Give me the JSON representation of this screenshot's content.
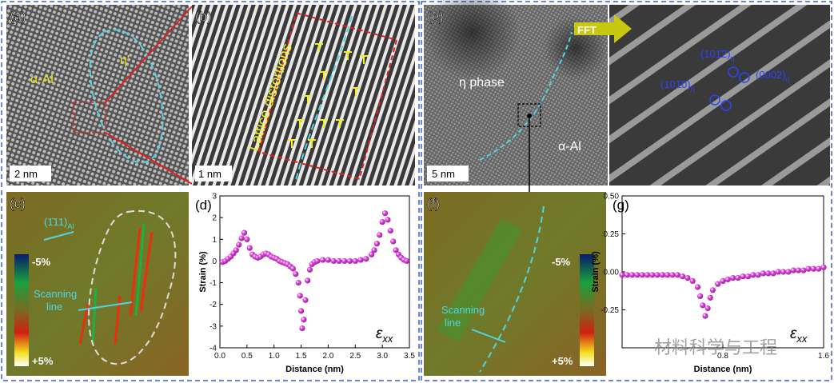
{
  "figure": {
    "a": {
      "label": "(a)",
      "matrix": "α-Al",
      "precipitate": "η'",
      "scale": "2 nm"
    },
    "b": {
      "label": "(b)",
      "annotation": "Lattice distortions",
      "scale": "1 nm"
    },
    "c": {
      "label": "(c)",
      "plane": "(1̄11)",
      "plane_sub": "Al",
      "scan": [
        "Scanning",
        "line"
      ],
      "colorbar": [
        "-5%",
        "+5%"
      ]
    },
    "e": {
      "label": "(e)",
      "phase": "η phase",
      "matrix": "α-Al",
      "scale": "5 nm",
      "arrow": "FFT"
    },
    "fft": {
      "spots": [
        {
          "index": "(101̄2)",
          "sub": "η"
        },
        {
          "index": "(0002)",
          "sub": "η"
        },
        {
          "index": "(101̄0)",
          "sub": "η"
        }
      ]
    },
    "f": {
      "label": "(f)",
      "scan": [
        "Scanning",
        "line"
      ],
      "colorbar": [
        "-5%",
        "+5%"
      ]
    },
    "watermark": "材料科学与工程"
  },
  "chart_data": [
    {
      "type": "scatter",
      "panel_label": "(d)",
      "xlabel": "Distance (nm)",
      "ylabel": "Strain (%)",
      "annotation": {
        "symbol": "ε",
        "subscript": "xx"
      },
      "color": "#e040e0",
      "xlim": [
        0,
        3.5
      ],
      "ylim": [
        -4,
        3
      ],
      "xticks": [
        {
          "value": 0,
          "label": "0.0"
        },
        0.5,
        {
          "value": 1,
          "label": "1.0"
        },
        1.5,
        {
          "value": 2,
          "label": "2.0"
        },
        2.5,
        {
          "value": 3,
          "label": "3.0"
        },
        3.5
      ],
      "yticks": [
        -4,
        -3,
        -2,
        -1,
        0,
        1,
        2,
        3
      ],
      "x": [
        0.05,
        0.1,
        0.15,
        0.2,
        0.25,
        0.3,
        0.35,
        0.4,
        0.45,
        0.5,
        0.55,
        0.6,
        0.65,
        0.7,
        0.75,
        0.8,
        0.85,
        0.9,
        0.95,
        1.0,
        1.05,
        1.1,
        1.15,
        1.2,
        1.25,
        1.3,
        1.35,
        1.4,
        1.45,
        1.48,
        1.5,
        1.52,
        1.55,
        1.58,
        1.62,
        1.66,
        1.7,
        1.75,
        1.8,
        1.9,
        2.0,
        2.1,
        2.2,
        2.3,
        2.4,
        2.5,
        2.6,
        2.7,
        2.8,
        2.85,
        2.9,
        2.95,
        3.0,
        3.05,
        3.1,
        3.15,
        3.2,
        3.25,
        3.3,
        3.35,
        3.4,
        3.45
      ],
      "values": [
        -0.05,
        0,
        0.1,
        0.2,
        0.35,
        0.5,
        0.75,
        1.05,
        1.3,
        1.0,
        0.6,
        0.3,
        0.2,
        0.15,
        0.2,
        0.3,
        0.35,
        0.3,
        0.2,
        0.15,
        0.1,
        0,
        -0.05,
        -0.1,
        -0.15,
        -0.25,
        -0.35,
        -0.6,
        -1.0,
        -1.6,
        -2.3,
        -3.1,
        -2.7,
        -1.8,
        -0.9,
        -0.4,
        -0.15,
        -0.05,
        0,
        0.05,
        0.05,
        0,
        0,
        0,
        0,
        0,
        0.05,
        0.1,
        0.3,
        0.5,
        0.8,
        1.2,
        1.8,
        2.2,
        1.9,
        1.4,
        0.9,
        0.5,
        0.3,
        0.15,
        0.05,
        0
      ]
    },
    {
      "type": "scatter",
      "panel_label": "(g)",
      "xlabel": "Distance (nm)",
      "ylabel": "Strain (%)",
      "annotation": {
        "symbol": "ε",
        "subscript": "xx"
      },
      "color": "#e040e0",
      "xlim": [
        0,
        1.6
      ],
      "ylim": [
        -0.5,
        0.5
      ],
      "xticks": [
        0.8,
        1.6
      ],
      "yticks": [
        -0.25,
        {
          "value": 0,
          "label": "0.00"
        },
        0.25,
        {
          "value": 0.5,
          "label": "0.50"
        }
      ],
      "x": [
        0,
        0.04,
        0.08,
        0.12,
        0.16,
        0.2,
        0.24,
        0.28,
        0.32,
        0.36,
        0.4,
        0.44,
        0.48,
        0.52,
        0.56,
        0.6,
        0.62,
        0.64,
        0.66,
        0.68,
        0.7,
        0.72,
        0.76,
        0.8,
        0.84,
        0.88,
        0.92,
        0.96,
        1.0,
        1.04,
        1.08,
        1.12,
        1.16,
        1.2,
        1.24,
        1.28,
        1.32,
        1.36,
        1.4,
        1.44,
        1.48,
        1.52,
        1.56,
        1.6
      ],
      "values": [
        -0.02,
        -0.02,
        -0.02,
        -0.02,
        -0.02,
        -0.02,
        -0.02,
        -0.02,
        -0.02,
        -0.02,
        -0.02,
        -0.02,
        -0.03,
        -0.04,
        -0.06,
        -0.1,
        -0.16,
        -0.22,
        -0.29,
        -0.24,
        -0.17,
        -0.12,
        -0.08,
        -0.06,
        -0.05,
        -0.04,
        -0.04,
        -0.03,
        -0.03,
        -0.02,
        -0.02,
        -0.01,
        -0.01,
        -0.01,
        0,
        0,
        0,
        0.01,
        0.01,
        0.01,
        0.02,
        0.02,
        0.02,
        0.03
      ]
    }
  ]
}
